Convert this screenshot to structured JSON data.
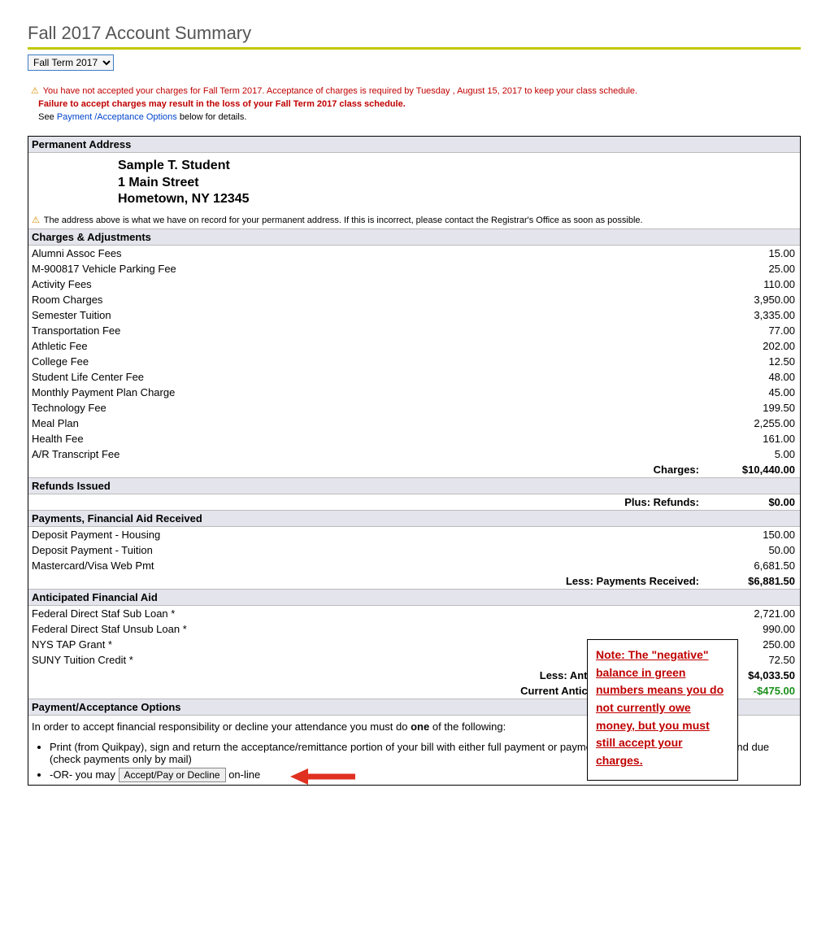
{
  "page": {
    "title": "Fall 2017 Account Summary"
  },
  "term_select": {
    "value": "Fall Term 2017"
  },
  "notice": {
    "line1": "You have not accepted your charges for Fall Term 2017. Acceptance of charges is required by Tuesday , August 15, 2017 to keep your class schedule.",
    "line2": "Failure to accept charges may result in the loss of your Fall Term 2017 class schedule.",
    "line3a": "See ",
    "line3_link": "Payment /Acceptance Options",
    "line3b": " below for details."
  },
  "address": {
    "section_label": "Permanent Address",
    "name": "Sample T. Student",
    "street": "1 Main Street",
    "city": "Hometown, NY 12345",
    "warn": "The address above is what we have on record for your permanent address. If this is incorrect, please contact the Registrar's Office as soon as possible."
  },
  "charges": {
    "section_label": "Charges & Adjustments",
    "items": [
      {
        "label": "Alumni Assoc Fees",
        "amount": "15.00"
      },
      {
        "label": "M-900817 Vehicle Parking Fee",
        "amount": "25.00"
      },
      {
        "label": "Activity Fees",
        "amount": "110.00"
      },
      {
        "label": "Room Charges",
        "amount": "3,950.00"
      },
      {
        "label": "Semester Tuition",
        "amount": "3,335.00"
      },
      {
        "label": "Transportation Fee",
        "amount": "77.00"
      },
      {
        "label": "Athletic Fee",
        "amount": "202.00"
      },
      {
        "label": "College Fee",
        "amount": "12.50"
      },
      {
        "label": "Student Life Center Fee",
        "amount": "48.00"
      },
      {
        "label": "Monthly Payment Plan Charge",
        "amount": "45.00"
      },
      {
        "label": "Technology Fee",
        "amount": "199.50"
      },
      {
        "label": "Meal Plan",
        "amount": "2,255.00"
      },
      {
        "label": "Health Fee",
        "amount": "161.00"
      },
      {
        "label": "A/R Transcript Fee",
        "amount": "5.00"
      }
    ],
    "total_label": "Charges:",
    "total_amount": "$10,440.00"
  },
  "refunds": {
    "section_label": "Refunds Issued",
    "total_label": "Plus: Refunds:",
    "total_amount": "$0.00"
  },
  "payments": {
    "section_label": "Payments, Financial Aid Received",
    "items": [
      {
        "label": "Deposit Payment - Housing",
        "amount": "150.00"
      },
      {
        "label": "Deposit Payment - Tuition",
        "amount": "50.00"
      },
      {
        "label": "Mastercard/Visa Web Pmt",
        "amount": "6,681.50"
      }
    ],
    "total_label": "Less: Payments Received:",
    "total_amount": "$6,881.50"
  },
  "aid": {
    "section_label": "Anticipated Financial Aid",
    "items": [
      {
        "label": "Federal Direct Staf Sub Loan *",
        "amount": "2,721.00"
      },
      {
        "label": "Federal Direct Staf Unsub Loan *",
        "amount": "990.00"
      },
      {
        "label": "NYS TAP Grant *",
        "amount": "250.00"
      },
      {
        "label": "SUNY Tuition Credit *",
        "amount": "72.50"
      }
    ],
    "total_label": "Less: Anticipated Financial Aid:",
    "total_amount": "$4,033.50",
    "balance_label": "Current Anticipated Credit Balance:",
    "balance_amount": "-$475.00"
  },
  "options": {
    "section_label": "Payment/Acceptance Options",
    "intro_a": "In order to accept financial responsibility or decline your attendance you must do ",
    "intro_b": "one",
    "intro_c": " of the following:",
    "bullet1": "Print (from Quikpay), sign and return the acceptance/remittance portion of your bill with either full payment or payment plan amount/minimum amound due (check payments only by mail)",
    "bullet2a": "-OR- you may ",
    "button": "Accept/Pay or Decline",
    "bullet2b": " on-line"
  },
  "note_overlay": "Note:  The \"negative\" balance in green numbers means you do not currently owe money, but you must still accept your charges.",
  "colors": {
    "rule": "#c2c800",
    "section_bg": "#e4e4ec",
    "red": "#c00000",
    "link": "#0044cc",
    "green": "#1a8f1a"
  }
}
